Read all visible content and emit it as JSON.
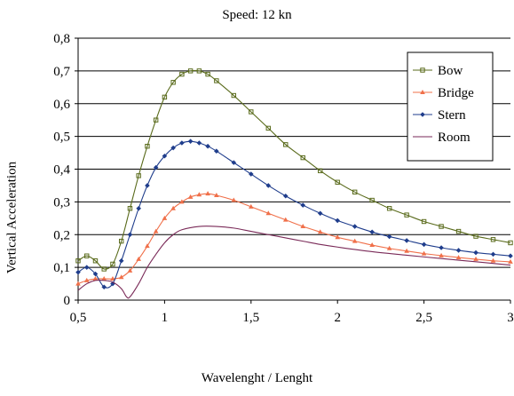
{
  "chart_data": {
    "type": "line",
    "title": "Speed: 12 kn",
    "xlabel": "Wavelenght / Lenght",
    "ylabel": "Vertical Acceleration",
    "xlim": [
      0.5,
      3.0
    ],
    "ylim": [
      0,
      0.8
    ],
    "xticks": [
      0.5,
      1,
      1.5,
      2,
      2.5,
      3
    ],
    "xtick_labels": [
      "0,5",
      "1",
      "1,5",
      "2",
      "2,5",
      "3"
    ],
    "yticks": [
      0,
      0.1,
      0.2,
      0.3,
      0.4,
      0.5,
      0.6,
      0.7,
      0.8
    ],
    "ytick_labels": [
      "0",
      "0,1",
      "0,2",
      "0,3",
      "0,4",
      "0,5",
      "0,6",
      "0,7",
      "0,8"
    ],
    "grid": "horizontal",
    "legend_position": "top-right",
    "series": [
      {
        "name": "Bow",
        "color": "#5a6b1c",
        "marker": "square",
        "points": [
          [
            0.5,
            0.12
          ],
          [
            0.55,
            0.135
          ],
          [
            0.6,
            0.12
          ],
          [
            0.65,
            0.095
          ],
          [
            0.7,
            0.11
          ],
          [
            0.75,
            0.18
          ],
          [
            0.8,
            0.28
          ],
          [
            0.85,
            0.38
          ],
          [
            0.9,
            0.47
          ],
          [
            0.95,
            0.55
          ],
          [
            1.0,
            0.62
          ],
          [
            1.05,
            0.665
          ],
          [
            1.1,
            0.69
          ],
          [
            1.15,
            0.7
          ],
          [
            1.2,
            0.7
          ],
          [
            1.25,
            0.69
          ],
          [
            1.3,
            0.67
          ],
          [
            1.4,
            0.625
          ],
          [
            1.5,
            0.575
          ],
          [
            1.6,
            0.525
          ],
          [
            1.7,
            0.475
          ],
          [
            1.8,
            0.435
          ],
          [
            1.9,
            0.395
          ],
          [
            2.0,
            0.36
          ],
          [
            2.1,
            0.33
          ],
          [
            2.2,
            0.305
          ],
          [
            2.3,
            0.28
          ],
          [
            2.4,
            0.26
          ],
          [
            2.5,
            0.24
          ],
          [
            2.6,
            0.225
          ],
          [
            2.7,
            0.21
          ],
          [
            2.8,
            0.195
          ],
          [
            2.9,
            0.185
          ],
          [
            3.0,
            0.175
          ]
        ]
      },
      {
        "name": "Bridge",
        "color": "#f0704a",
        "marker": "triangle",
        "points": [
          [
            0.5,
            0.05
          ],
          [
            0.55,
            0.06
          ],
          [
            0.6,
            0.065
          ],
          [
            0.65,
            0.065
          ],
          [
            0.7,
            0.065
          ],
          [
            0.75,
            0.07
          ],
          [
            0.8,
            0.09
          ],
          [
            0.85,
            0.125
          ],
          [
            0.9,
            0.165
          ],
          [
            0.95,
            0.21
          ],
          [
            1.0,
            0.25
          ],
          [
            1.05,
            0.28
          ],
          [
            1.1,
            0.3
          ],
          [
            1.15,
            0.315
          ],
          [
            1.2,
            0.322
          ],
          [
            1.25,
            0.325
          ],
          [
            1.3,
            0.32
          ],
          [
            1.4,
            0.305
          ],
          [
            1.5,
            0.285
          ],
          [
            1.6,
            0.265
          ],
          [
            1.7,
            0.245
          ],
          [
            1.8,
            0.225
          ],
          [
            1.9,
            0.208
          ],
          [
            2.0,
            0.192
          ],
          [
            2.1,
            0.18
          ],
          [
            2.2,
            0.168
          ],
          [
            2.3,
            0.158
          ],
          [
            2.4,
            0.15
          ],
          [
            2.5,
            0.142
          ],
          [
            2.6,
            0.136
          ],
          [
            2.7,
            0.13
          ],
          [
            2.8,
            0.125
          ],
          [
            2.9,
            0.12
          ],
          [
            3.0,
            0.117
          ]
        ]
      },
      {
        "name": "Stern",
        "color": "#1f3d8c",
        "marker": "diamond",
        "points": [
          [
            0.5,
            0.085
          ],
          [
            0.55,
            0.1
          ],
          [
            0.6,
            0.08
          ],
          [
            0.65,
            0.04
          ],
          [
            0.7,
            0.05
          ],
          [
            0.75,
            0.12
          ],
          [
            0.8,
            0.2
          ],
          [
            0.85,
            0.28
          ],
          [
            0.9,
            0.35
          ],
          [
            0.95,
            0.405
          ],
          [
            1.0,
            0.44
          ],
          [
            1.05,
            0.465
          ],
          [
            1.1,
            0.48
          ],
          [
            1.15,
            0.485
          ],
          [
            1.2,
            0.48
          ],
          [
            1.25,
            0.47
          ],
          [
            1.3,
            0.455
          ],
          [
            1.4,
            0.42
          ],
          [
            1.5,
            0.385
          ],
          [
            1.6,
            0.35
          ],
          [
            1.7,
            0.318
          ],
          [
            1.8,
            0.29
          ],
          [
            1.9,
            0.265
          ],
          [
            2.0,
            0.243
          ],
          [
            2.1,
            0.225
          ],
          [
            2.2,
            0.208
          ],
          [
            2.3,
            0.194
          ],
          [
            2.4,
            0.182
          ],
          [
            2.5,
            0.17
          ],
          [
            2.6,
            0.16
          ],
          [
            2.7,
            0.152
          ],
          [
            2.8,
            0.145
          ],
          [
            2.9,
            0.14
          ],
          [
            3.0,
            0.135
          ]
        ]
      },
      {
        "name": "Room",
        "color": "#7a2a58",
        "marker": "none",
        "points": [
          [
            0.5,
            0.03
          ],
          [
            0.55,
            0.05
          ],
          [
            0.6,
            0.06
          ],
          [
            0.65,
            0.06
          ],
          [
            0.7,
            0.055
          ],
          [
            0.75,
            0.035
          ],
          [
            0.78,
            0.01
          ],
          [
            0.8,
            0.01
          ],
          [
            0.85,
            0.05
          ],
          [
            0.9,
            0.1
          ],
          [
            0.95,
            0.14
          ],
          [
            1.0,
            0.175
          ],
          [
            1.05,
            0.2
          ],
          [
            1.1,
            0.215
          ],
          [
            1.2,
            0.225
          ],
          [
            1.3,
            0.225
          ],
          [
            1.4,
            0.22
          ],
          [
            1.5,
            0.21
          ],
          [
            1.6,
            0.2
          ],
          [
            1.7,
            0.19
          ],
          [
            1.8,
            0.18
          ],
          [
            1.9,
            0.17
          ],
          [
            2.0,
            0.162
          ],
          [
            2.2,
            0.148
          ],
          [
            2.4,
            0.137
          ],
          [
            2.6,
            0.127
          ],
          [
            2.8,
            0.117
          ],
          [
            3.0,
            0.107
          ]
        ]
      }
    ]
  }
}
